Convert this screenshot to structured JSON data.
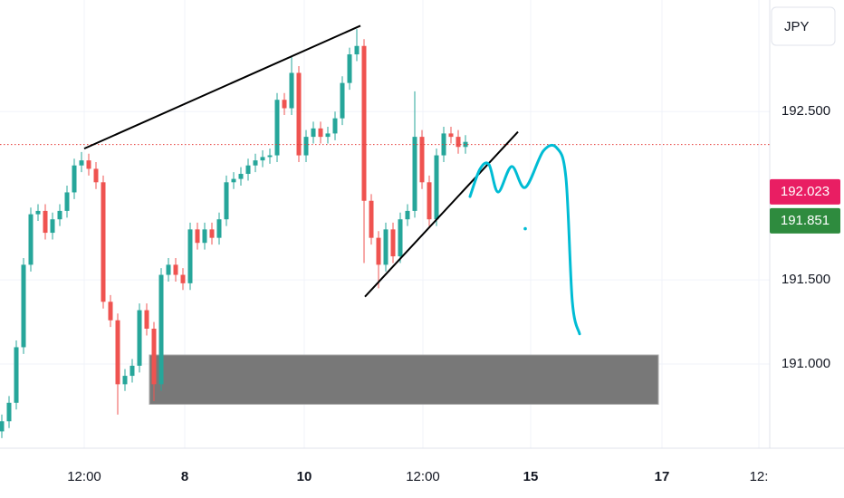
{
  "chart_data": {
    "type": "candlestick",
    "currency": "JPY",
    "xlim": [
      -0.25,
      106
    ],
    "ylim": [
      190.5,
      193.163
    ],
    "yticks": [
      {
        "value": 191,
        "label": "191.000"
      },
      {
        "value": 191.5,
        "label": "191.500"
      },
      {
        "value": 192.5,
        "label": "192.500"
      }
    ],
    "xticks": [
      {
        "value": 11.375,
        "label": "12:00"
      },
      {
        "value": 25.25,
        "label": "8"
      },
      {
        "value": 41.75,
        "label": "10"
      },
      {
        "value": 58.125,
        "label": "12:00"
      },
      {
        "value": 73,
        "label": "15"
      },
      {
        "value": 91.125,
        "label": "17"
      },
      {
        "value": 104.5,
        "label": "12:"
      }
    ],
    "grid": true,
    "up_color": "#26a69a",
    "down_color": "#ef5350",
    "x": [
      0,
      1,
      2,
      3,
      4,
      5,
      6,
      7,
      8,
      9,
      10,
      11,
      12,
      13,
      14,
      15,
      16,
      17,
      18,
      19,
      20,
      21,
      22,
      23,
      24,
      25,
      26,
      27,
      28,
      29,
      30,
      31,
      32,
      33,
      34,
      35,
      36,
      37,
      38,
      39,
      40,
      41,
      42,
      43,
      44,
      45,
      46,
      47,
      48,
      49,
      50,
      51,
      52,
      53,
      54,
      55,
      56,
      57,
      58,
      59,
      60,
      61,
      62,
      63,
      64
    ],
    "ohlc": [
      [
        190.6,
        190.7,
        190.56,
        190.66
      ],
      [
        190.66,
        190.81,
        190.62,
        190.77
      ],
      [
        190.77,
        191.14,
        190.73,
        191.1
      ],
      [
        191.1,
        191.63,
        191.06,
        191.59
      ],
      [
        191.59,
        191.93,
        191.55,
        191.89
      ],
      [
        191.89,
        191.95,
        191.85,
        191.91
      ],
      [
        191.91,
        191.95,
        191.74,
        191.78
      ],
      [
        191.78,
        191.9,
        191.74,
        191.86
      ],
      [
        191.86,
        191.95,
        191.82,
        191.91
      ],
      [
        191.91,
        192.06,
        191.87,
        192.02
      ],
      [
        192.02,
        192.22,
        191.98,
        192.18
      ],
      [
        192.18,
        192.26,
        192.14,
        192.21
      ],
      [
        192.21,
        192.25,
        192.12,
        192.16
      ],
      [
        192.16,
        192.2,
        192.04,
        192.08
      ],
      [
        192.08,
        192.12,
        191.33,
        191.37
      ],
      [
        191.37,
        191.41,
        191.22,
        191.26
      ],
      [
        191.26,
        191.3,
        190.7,
        190.88
      ],
      [
        190.88,
        190.97,
        190.84,
        190.93
      ],
      [
        190.93,
        191.03,
        190.89,
        190.99
      ],
      [
        190.99,
        191.36,
        190.95,
        191.32
      ],
      [
        191.32,
        191.36,
        191.17,
        191.21
      ],
      [
        191.21,
        191.25,
        190.78,
        190.88
      ],
      [
        190.88,
        191.57,
        190.84,
        191.53
      ],
      [
        191.53,
        191.63,
        191.49,
        191.59
      ],
      [
        191.59,
        191.63,
        191.49,
        191.53
      ],
      [
        191.53,
        191.57,
        191.44,
        191.48
      ],
      [
        191.48,
        191.84,
        191.44,
        191.8
      ],
      [
        191.8,
        191.84,
        191.68,
        191.72
      ],
      [
        191.72,
        191.84,
        191.68,
        191.8
      ],
      [
        191.8,
        191.84,
        191.71,
        191.75
      ],
      [
        191.75,
        191.9,
        191.71,
        191.86
      ],
      [
        191.86,
        192.12,
        191.82,
        192.08
      ],
      [
        192.08,
        192.14,
        192.04,
        192.1
      ],
      [
        192.1,
        192.17,
        192.06,
        192.13
      ],
      [
        192.13,
        192.22,
        192.09,
        192.18
      ],
      [
        192.18,
        192.25,
        192.14,
        192.21
      ],
      [
        192.21,
        192.27,
        192.17,
        192.23
      ],
      [
        192.23,
        192.28,
        192.19,
        192.24
      ],
      [
        192.24,
        192.61,
        192.2,
        192.57
      ],
      [
        192.57,
        192.61,
        192.48,
        192.52
      ],
      [
        192.52,
        192.83,
        192.48,
        192.73
      ],
      [
        192.73,
        192.77,
        192.2,
        192.24
      ],
      [
        192.24,
        192.39,
        192.2,
        192.35
      ],
      [
        192.35,
        192.44,
        192.31,
        192.4
      ],
      [
        192.4,
        192.44,
        192.31,
        192.35
      ],
      [
        192.35,
        192.41,
        192.31,
        192.37
      ],
      [
        192.37,
        192.5,
        192.33,
        192.46
      ],
      [
        192.46,
        192.71,
        192.42,
        192.67
      ],
      [
        192.67,
        192.88,
        192.63,
        192.84
      ],
      [
        192.84,
        192.99,
        192.8,
        192.89
      ],
      [
        192.89,
        192.93,
        191.6,
        191.97
      ],
      [
        191.97,
        192.01,
        191.71,
        191.75
      ],
      [
        191.75,
        191.79,
        191.45,
        191.59
      ],
      [
        191.59,
        191.84,
        191.55,
        191.8
      ],
      [
        191.8,
        191.84,
        191.6,
        191.64
      ],
      [
        191.64,
        191.9,
        191.6,
        191.86
      ],
      [
        191.86,
        191.95,
        191.82,
        191.91
      ],
      [
        191.91,
        192.62,
        191.87,
        192.35
      ],
      [
        192.35,
        192.39,
        192.04,
        192.08
      ],
      [
        192.08,
        192.12,
        191.82,
        191.86
      ],
      [
        191.86,
        192.28,
        191.82,
        192.24
      ],
      [
        192.24,
        192.41,
        192.2,
        192.37
      ],
      [
        192.37,
        192.41,
        192.31,
        192.35
      ],
      [
        192.35,
        192.39,
        192.25,
        192.29
      ],
      [
        192.29,
        192.36,
        192.25,
        192.32
      ]
    ],
    "price_line": {
      "value": 192.304,
      "color": "#e53935"
    },
    "price_labels": [
      {
        "value": 192.023,
        "label": "192.023",
        "color": "#e91e63"
      },
      {
        "value": 191.851,
        "label": "191.851",
        "color": "#2e8b3e"
      }
    ],
    "zone": {
      "x": [
        20.375,
        90.625
      ],
      "y": [
        190.761,
        191.054
      ],
      "color": "#787878"
    },
    "trend_lines": [
      {
        "x": [
          11.375,
          49.5
        ],
        "y": [
          192.28,
          193.01
        ],
        "color": "#000000"
      },
      {
        "x": [
          50.125,
          71.25
        ],
        "y": [
          191.4,
          192.38
        ],
        "color": "#000000"
      }
    ],
    "projection": {
      "x": [
        64.625,
        66,
        67.25,
        68.5,
        70.375,
        72.25,
        74.75,
        76.625,
        77.875,
        78.75,
        79.75
      ],
      "y": [
        191.995,
        192.158,
        192.185,
        192.022,
        192.174,
        192.049,
        192.266,
        192.283,
        192.103,
        191.37,
        191.179
      ],
      "color": "#00bcd4"
    },
    "marker": {
      "x": 72.25,
      "y": 191.804,
      "color": "#00bcd4"
    }
  }
}
